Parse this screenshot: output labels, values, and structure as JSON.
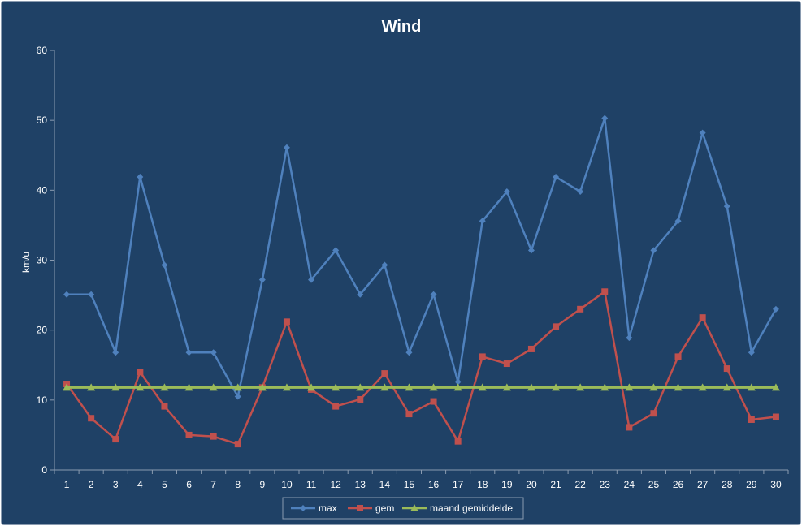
{
  "chart_data": {
    "type": "line",
    "title": "Wind",
    "xlabel": "",
    "ylabel": "km/u",
    "ylim": [
      0,
      60
    ],
    "yticks": [
      0,
      10,
      20,
      30,
      40,
      50,
      60
    ],
    "grid": false,
    "legend_position": "bottom",
    "categories": [
      "1",
      "2",
      "3",
      "4",
      "5",
      "6",
      "7",
      "8",
      "9",
      "10",
      "11",
      "12",
      "13",
      "14",
      "15",
      "16",
      "17",
      "18",
      "19",
      "20",
      "21",
      "22",
      "23",
      "24",
      "25",
      "26",
      "27",
      "28",
      "29",
      "30"
    ],
    "series": [
      {
        "name": "max",
        "color": "#4f81bd",
        "marker": "diamond",
        "values": [
          25.1,
          25.1,
          16.8,
          41.9,
          29.3,
          16.8,
          16.8,
          10.5,
          27.2,
          46.1,
          27.2,
          31.4,
          25.1,
          29.3,
          16.8,
          25.1,
          12.6,
          35.6,
          39.8,
          31.4,
          41.9,
          39.8,
          50.3,
          18.9,
          31.4,
          35.6,
          48.2,
          37.7,
          16.8,
          23.0
        ]
      },
      {
        "name": "gem",
        "color": "#c0504d",
        "marker": "square",
        "values": [
          12.3,
          7.4,
          4.4,
          14.0,
          9.1,
          5.0,
          4.8,
          3.7,
          11.8,
          21.2,
          11.5,
          9.1,
          10.1,
          13.8,
          8.0,
          9.8,
          4.1,
          16.2,
          15.2,
          17.3,
          20.5,
          23.0,
          25.5,
          6.1,
          8.1,
          16.2,
          21.8,
          14.5,
          7.2,
          7.6
        ]
      },
      {
        "name": "maand gemiddelde",
        "color": "#9bbb59",
        "marker": "triangle",
        "values": [
          11.8,
          11.8,
          11.8,
          11.8,
          11.8,
          11.8,
          11.8,
          11.8,
          11.8,
          11.8,
          11.8,
          11.8,
          11.8,
          11.8,
          11.8,
          11.8,
          11.8,
          11.8,
          11.8,
          11.8,
          11.8,
          11.8,
          11.8,
          11.8,
          11.8,
          11.8,
          11.8,
          11.8,
          11.8,
          11.8
        ]
      }
    ]
  },
  "colors": {
    "background": "#1f4166",
    "axis": "#8a9bb0",
    "text": "#ffffff"
  }
}
